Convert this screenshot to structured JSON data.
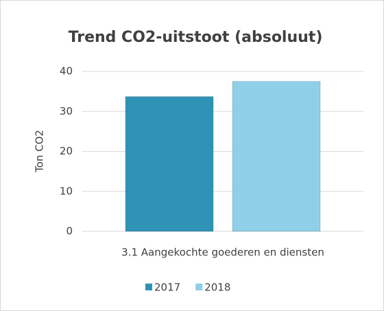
{
  "chart_data": {
    "type": "bar",
    "title": "Trend CO2-uitstoot (absoluut)",
    "y_label": "Ton CO2",
    "categories": [
      "3.1 Aangekochte goederen en diensten"
    ],
    "series": [
      {
        "name": "2017",
        "color": "#2f93b5",
        "values": [
          33.7
        ]
      },
      {
        "name": "2018",
        "color": "#8fd0e8",
        "values": [
          37.5
        ]
      }
    ],
    "ylim": [
      0,
      40
    ],
    "yticks": [
      0,
      10,
      20,
      30,
      40
    ],
    "grid": true,
    "legend": "bottom"
  }
}
